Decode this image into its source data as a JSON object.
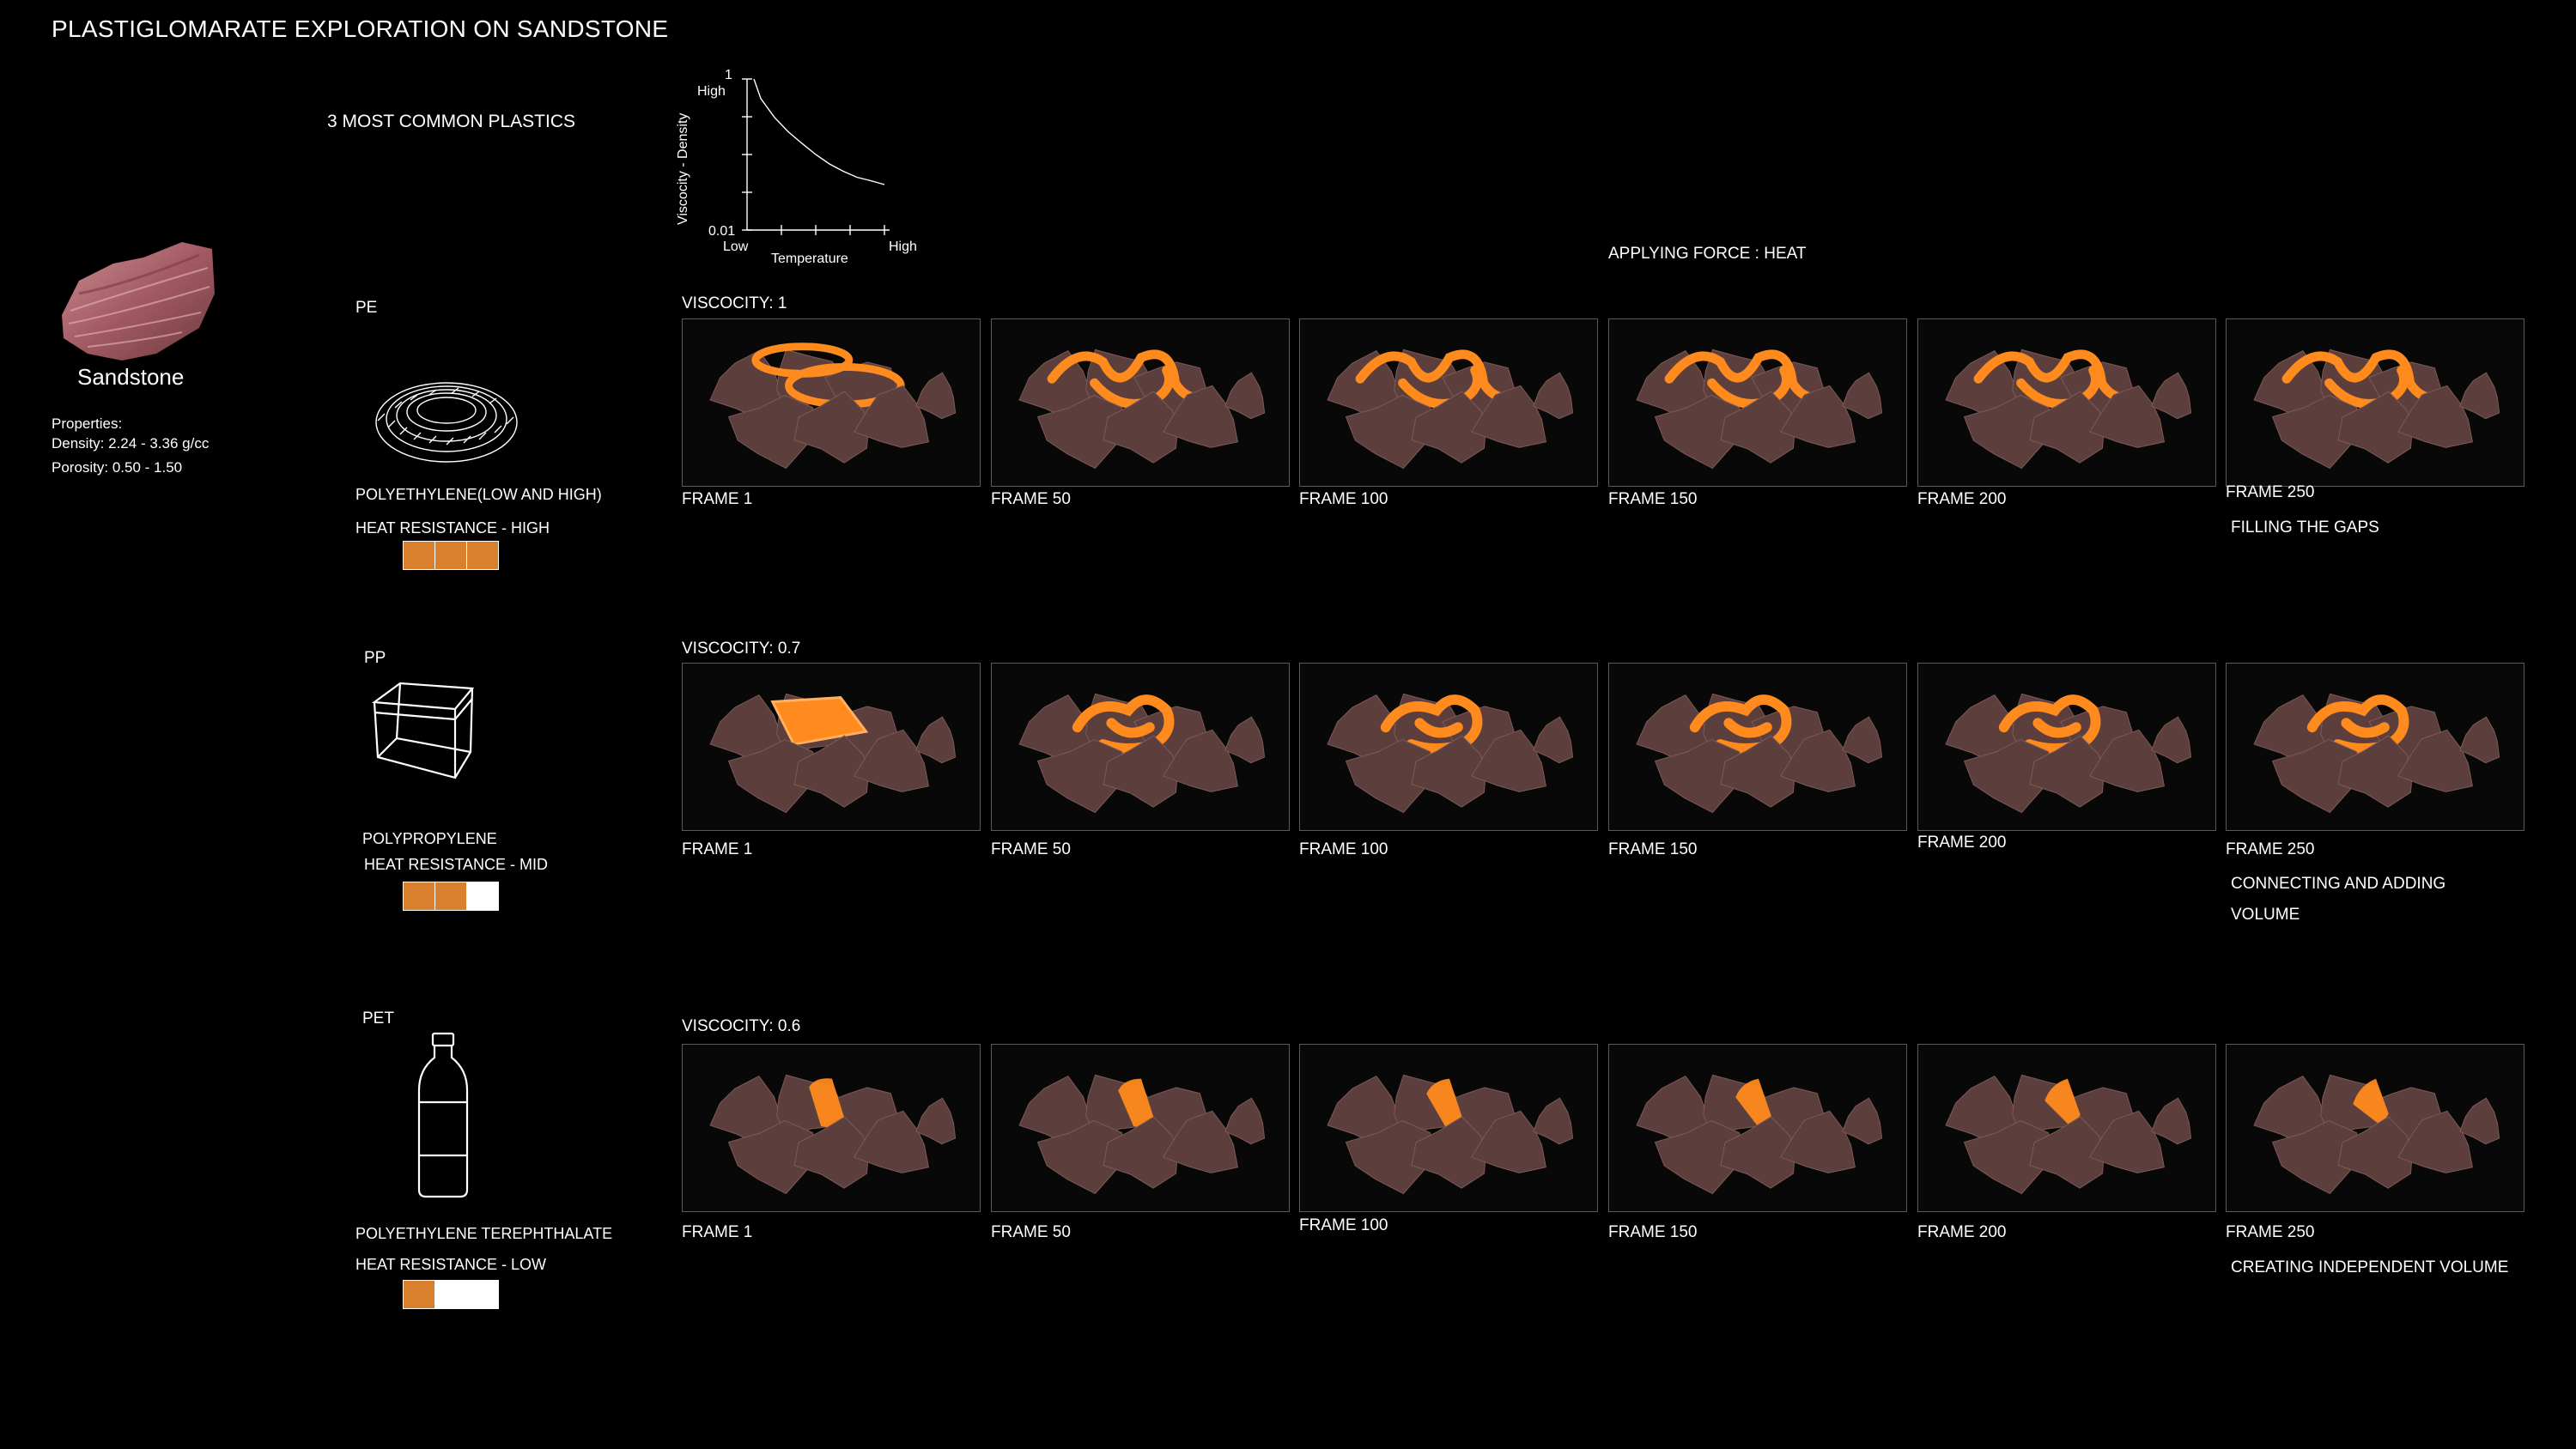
{
  "page_title": "PLASTIGLOMARATE EXPLORATION ON SANDSTONE",
  "plastics_heading": "3 MOST COMMON PLASTICS",
  "force_label": "APPLYING FORCE : HEAT",
  "sandstone": {
    "name": "Sandstone",
    "properties_label": "Properties:",
    "density": "Density: 2.24 - 3.36 g/cc",
    "porosity": "Porosity: 0.50 - 1.50"
  },
  "chart_data": {
    "type": "line",
    "ylabel": "Viscocity - Density",
    "xlabel": "Temperature",
    "y_top_value": "1",
    "y_top_label": "High",
    "y_bottom_value": "0.01",
    "x_low_label": "Low",
    "x_high_label": "High",
    "ylim": [
      0.01,
      1
    ],
    "series": [
      {
        "x": [
          0.05,
          0.1,
          0.2,
          0.3,
          0.4,
          0.5,
          0.6,
          0.7,
          0.8,
          0.9,
          1.0
        ],
        "y": [
          1.0,
          0.55,
          0.31,
          0.2,
          0.14,
          0.1,
          0.075,
          0.06,
          0.05,
          0.045,
          0.04
        ]
      }
    ]
  },
  "colors": {
    "plastic": "#ff8a1e",
    "rock": "#5c3f3c",
    "heat_on": "#d9802e"
  },
  "rows": [
    {
      "code": "PE",
      "name": "POLYETHYLENE(LOW AND HIGH)",
      "heat": "HEAT RESISTANCE - HIGH",
      "heat_level": 3,
      "viscosity": "VISCOCITY: 1",
      "icon": "rope-coil-icon",
      "frames": [
        "FRAME 1",
        "FRAME 50",
        "FRAME 100",
        "FRAME 150",
        "FRAME 200",
        "FRAME 250"
      ],
      "note": "FILLING THE GAPS",
      "shape": "ring"
    },
    {
      "code": "PP",
      "name": "POLYPROPYLENE",
      "heat": "HEAT RESISTANCE - MID",
      "heat_level": 2,
      "viscosity": "VISCOCITY: 0.7",
      "icon": "container-box-icon",
      "frames": [
        "FRAME 1",
        "FRAME 50",
        "FRAME 100",
        "FRAME 150",
        "FRAME 200",
        "FRAME 250"
      ],
      "note": "CONNECTING AND ADDING VOLUME",
      "shape": "box"
    },
    {
      "code": "PET",
      "name": "POLYETHYLENE TEREPHTHALATE",
      "heat": "HEAT RESISTANCE - LOW",
      "heat_level": 1,
      "viscosity": "VISCOCITY: 0.6",
      "icon": "bottle-icon",
      "frames": [
        "FRAME 1",
        "FRAME 50",
        "FRAME 100",
        "FRAME 150",
        "FRAME 200",
        "FRAME 250"
      ],
      "note": "CREATING INDEPENDENT VOLUME",
      "shape": "cylinder"
    }
  ]
}
